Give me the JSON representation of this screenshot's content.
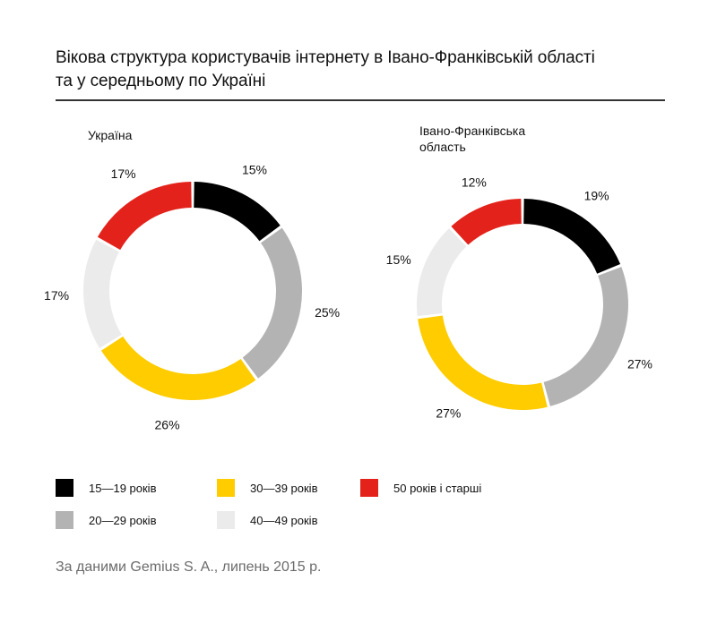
{
  "title_line1": "Вікова структура користувачів інтернету в Івано-Франківській області",
  "title_line2": "та у середньому по Україні",
  "source": "За даними Gemius S. A., липень 2015 р.",
  "colors": {
    "age_15_19": "#000000",
    "age_20_29": "#b3b3b3",
    "age_30_39": "#ffcc00",
    "age_40_49": "#ebebeb",
    "age_50_plus": "#e3231b"
  },
  "legend": [
    {
      "label": "15—19 років",
      "color": "#000000"
    },
    {
      "label": "30—39 років",
      "color": "#ffcc00"
    },
    {
      "label": "50 років і старші",
      "color": "#e3231b"
    },
    {
      "label": "20—29 років",
      "color": "#b3b3b3"
    },
    {
      "label": "40—49 років",
      "color": "#ebebeb"
    }
  ],
  "chart_data": [
    {
      "type": "pie",
      "title": "Україна",
      "categories": [
        "15—19 років",
        "20—29 років",
        "30—39 років",
        "40—49 років",
        "50 років і старші"
      ],
      "values": [
        15,
        25,
        26,
        17,
        17
      ],
      "labels": [
        "15%",
        "25%",
        "26%",
        "17%",
        "17%"
      ],
      "colors": [
        "#000000",
        "#b3b3b3",
        "#ffcc00",
        "#ebebeb",
        "#e3231b"
      ]
    },
    {
      "type": "pie",
      "title": "Івано-Франківська область",
      "title_line1": "Івано-Франківська",
      "title_line2": "область",
      "categories": [
        "15—19 років",
        "20—29 років",
        "30—39 років",
        "40—49 років",
        "50 років і старші"
      ],
      "values": [
        19,
        27,
        27,
        15,
        12
      ],
      "labels": [
        "19%",
        "27%",
        "27%",
        "15%",
        "12%"
      ],
      "colors": [
        "#000000",
        "#b3b3b3",
        "#ffcc00",
        "#ebebeb",
        "#e3231b"
      ]
    }
  ]
}
